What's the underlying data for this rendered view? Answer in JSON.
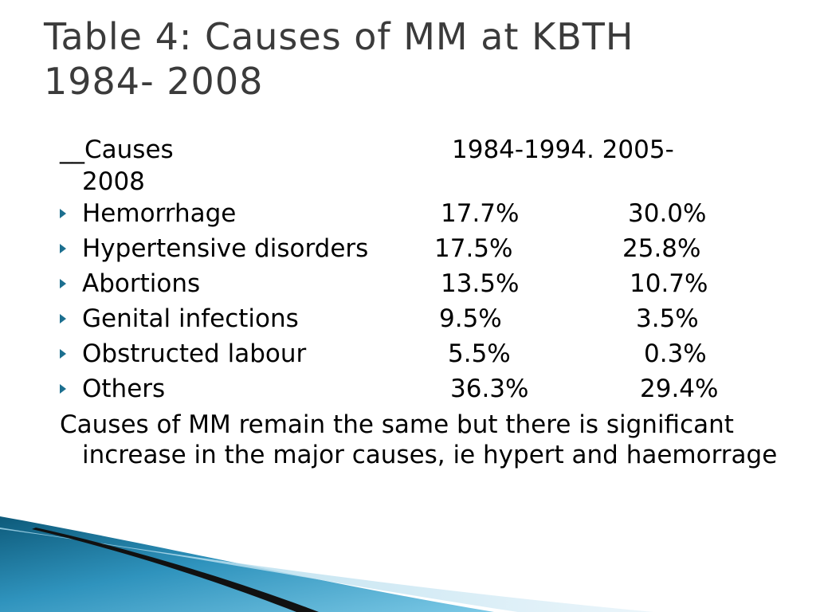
{
  "slide": {
    "title_line1": "Table 4: Causes of MM at KBTH",
    "title_line2": "1984- 2008"
  },
  "table": {
    "header": {
      "col0": "__Causes",
      "col1": "1984-1994.  2005-",
      "col1_wrap": "2008"
    },
    "rows": [
      {
        "cause": "Hemorrhage",
        "v1": "17.7%",
        "v2": "30.0%"
      },
      {
        "cause": "Hypertensive disorders",
        "v1": "17.5%",
        "v2": "25.8%"
      },
      {
        "cause": "Abortions",
        "v1": "13.5%",
        "v2": "10.7%"
      },
      {
        "cause": "Genital infections",
        "v1": "9.5%",
        "v2": "3.5%"
      },
      {
        "cause": "Obstructed labour",
        "v1": "5.5%",
        "v2": "0.3%"
      },
      {
        "cause": "Others",
        "v1": "36.3%",
        "v2": "29.4%"
      }
    ]
  },
  "conclusion": "Causes of MM remain the same but there is significant increase in the major causes, ie hypert and haemorrage",
  "colors": {
    "title": "#3b3b3b",
    "bullet": "#1c6f8f",
    "accent_dark": "#0f5f80",
    "accent_light": "#5bb6d8"
  }
}
